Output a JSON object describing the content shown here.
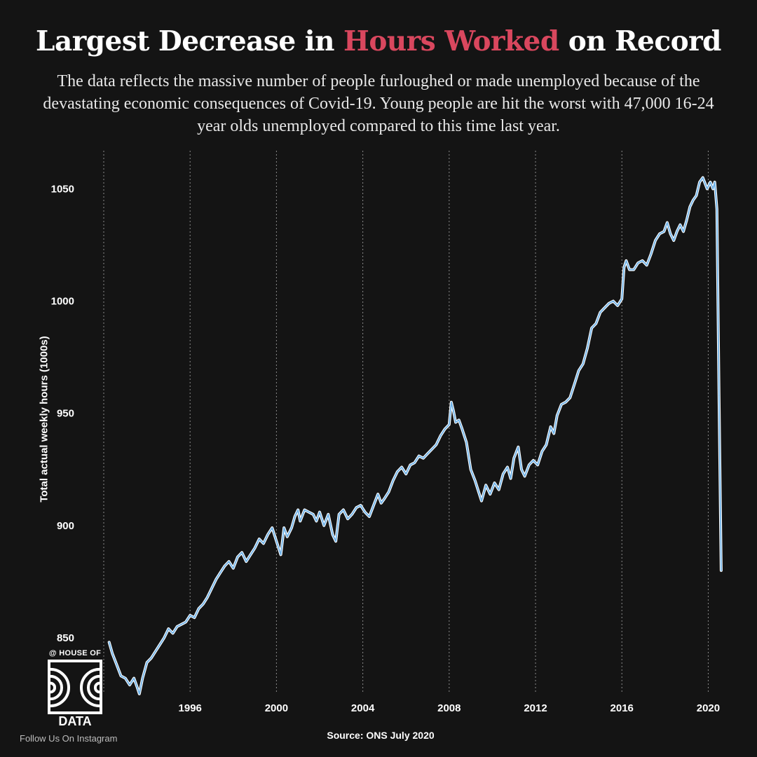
{
  "header": {
    "title_pre": "Largest Decrease in ",
    "title_highlight": "Hours Worked",
    "title_post": " on Record",
    "subtitle": "The data reflects the massive number of people furloughed or made unemployed because of the devastating economic consequences of Covid-19. Young people are hit the worst with 47,000 16-24 year olds unemployed compared to this time last year."
  },
  "colors": {
    "background": "#141414",
    "accent": "#d9475e",
    "line": "#6fb2e8",
    "line_halo": "#ffffff",
    "grid": "#8a8a8a",
    "text": "#ffffff"
  },
  "chart_data": {
    "type": "line",
    "title": "",
    "xlabel": "",
    "ylabel": "Total actual weekly hours (1000s)",
    "xlim": [
      1992,
      2020.7
    ],
    "ylim": [
      825,
      1067
    ],
    "grid": {
      "vertical": true,
      "horizontal": false,
      "style": "dotted"
    },
    "x_ticks": [
      1996,
      2000,
      2004,
      2008,
      2012,
      2016,
      2020
    ],
    "y_ticks": [
      850,
      900,
      950,
      1000,
      1050
    ],
    "series": [
      {
        "name": "",
        "points": [
          [
            1992.25,
            848
          ],
          [
            1992.4,
            843
          ],
          [
            1992.6,
            838
          ],
          [
            1992.8,
            833
          ],
          [
            1993.0,
            832
          ],
          [
            1993.2,
            829
          ],
          [
            1993.4,
            832
          ],
          [
            1993.55,
            828
          ],
          [
            1993.65,
            825
          ],
          [
            1993.8,
            832
          ],
          [
            1994.0,
            839
          ],
          [
            1994.2,
            841
          ],
          [
            1994.4,
            844
          ],
          [
            1994.6,
            847
          ],
          [
            1994.8,
            850
          ],
          [
            1995.0,
            854
          ],
          [
            1995.2,
            852
          ],
          [
            1995.4,
            855
          ],
          [
            1995.6,
            856
          ],
          [
            1995.8,
            857
          ],
          [
            1996.0,
            860
          ],
          [
            1996.2,
            859
          ],
          [
            1996.4,
            863
          ],
          [
            1996.6,
            865
          ],
          [
            1996.8,
            868
          ],
          [
            1997.0,
            872
          ],
          [
            1997.2,
            876
          ],
          [
            1997.4,
            879
          ],
          [
            1997.6,
            882
          ],
          [
            1997.8,
            884
          ],
          [
            1998.0,
            881
          ],
          [
            1998.2,
            886
          ],
          [
            1998.4,
            888
          ],
          [
            1998.6,
            884
          ],
          [
            1998.8,
            887
          ],
          [
            1999.0,
            890
          ],
          [
            1999.2,
            894
          ],
          [
            1999.4,
            892
          ],
          [
            1999.6,
            896
          ],
          [
            1999.8,
            899
          ],
          [
            2000.0,
            893
          ],
          [
            2000.2,
            887
          ],
          [
            2000.35,
            899
          ],
          [
            2000.5,
            895
          ],
          [
            2000.7,
            899
          ],
          [
            2000.85,
            904
          ],
          [
            2001.0,
            907
          ],
          [
            2001.1,
            902
          ],
          [
            2001.3,
            907
          ],
          [
            2001.5,
            906
          ],
          [
            2001.7,
            905
          ],
          [
            2001.85,
            902
          ],
          [
            2002.0,
            906
          ],
          [
            2002.2,
            900
          ],
          [
            2002.4,
            905
          ],
          [
            2002.6,
            896
          ],
          [
            2002.75,
            893
          ],
          [
            2002.9,
            905
          ],
          [
            2003.1,
            907
          ],
          [
            2003.3,
            903
          ],
          [
            2003.5,
            905
          ],
          [
            2003.7,
            908
          ],
          [
            2003.9,
            909
          ],
          [
            2004.1,
            906
          ],
          [
            2004.3,
            904
          ],
          [
            2004.5,
            909
          ],
          [
            2004.7,
            914
          ],
          [
            2004.85,
            910
          ],
          [
            2005.0,
            912
          ],
          [
            2005.2,
            915
          ],
          [
            2005.4,
            920
          ],
          [
            2005.6,
            924
          ],
          [
            2005.8,
            926
          ],
          [
            2006.0,
            923
          ],
          [
            2006.2,
            927
          ],
          [
            2006.4,
            928
          ],
          [
            2006.6,
            931
          ],
          [
            2006.8,
            930
          ],
          [
            2007.0,
            932
          ],
          [
            2007.2,
            934
          ],
          [
            2007.4,
            936
          ],
          [
            2007.6,
            940
          ],
          [
            2007.8,
            943
          ],
          [
            2008.0,
            945
          ],
          [
            2008.1,
            955
          ],
          [
            2008.2,
            951
          ],
          [
            2008.3,
            946
          ],
          [
            2008.45,
            947
          ],
          [
            2008.6,
            943
          ],
          [
            2008.8,
            937
          ],
          [
            2009.0,
            925
          ],
          [
            2009.2,
            920
          ],
          [
            2009.4,
            914
          ],
          [
            2009.5,
            911
          ],
          [
            2009.7,
            918
          ],
          [
            2009.9,
            914
          ],
          [
            2010.1,
            919
          ],
          [
            2010.3,
            916
          ],
          [
            2010.5,
            923
          ],
          [
            2010.7,
            926
          ],
          [
            2010.85,
            921
          ],
          [
            2011.0,
            930
          ],
          [
            2011.2,
            935
          ],
          [
            2011.35,
            925
          ],
          [
            2011.5,
            922
          ],
          [
            2011.7,
            927
          ],
          [
            2011.9,
            929
          ],
          [
            2012.1,
            927
          ],
          [
            2012.3,
            933
          ],
          [
            2012.5,
            936
          ],
          [
            2012.7,
            944
          ],
          [
            2012.85,
            941
          ],
          [
            2013.0,
            949
          ],
          [
            2013.2,
            954
          ],
          [
            2013.4,
            955
          ],
          [
            2013.6,
            957
          ],
          [
            2013.8,
            963
          ],
          [
            2014.0,
            969
          ],
          [
            2014.2,
            972
          ],
          [
            2014.4,
            979
          ],
          [
            2014.6,
            988
          ],
          [
            2014.8,
            990
          ],
          [
            2015.0,
            995
          ],
          [
            2015.2,
            997
          ],
          [
            2015.4,
            999
          ],
          [
            2015.6,
            1000
          ],
          [
            2015.8,
            998
          ],
          [
            2016.0,
            1001
          ],
          [
            2016.1,
            1015
          ],
          [
            2016.2,
            1018
          ],
          [
            2016.35,
            1014
          ],
          [
            2016.55,
            1014
          ],
          [
            2016.75,
            1017
          ],
          [
            2016.95,
            1018
          ],
          [
            2017.15,
            1016
          ],
          [
            2017.35,
            1021
          ],
          [
            2017.55,
            1027
          ],
          [
            2017.75,
            1030
          ],
          [
            2017.95,
            1031
          ],
          [
            2018.1,
            1035
          ],
          [
            2018.25,
            1030
          ],
          [
            2018.4,
            1027
          ],
          [
            2018.55,
            1031
          ],
          [
            2018.7,
            1034
          ],
          [
            2018.85,
            1031
          ],
          [
            2019.0,
            1036
          ],
          [
            2019.15,
            1042
          ],
          [
            2019.3,
            1045
          ],
          [
            2019.45,
            1047
          ],
          [
            2019.6,
            1053
          ],
          [
            2019.75,
            1055
          ],
          [
            2019.95,
            1050
          ],
          [
            2020.1,
            1053
          ],
          [
            2020.22,
            1050
          ],
          [
            2020.3,
            1053
          ],
          [
            2020.4,
            1041
          ],
          [
            2020.5,
            958
          ],
          [
            2020.6,
            880
          ]
        ]
      }
    ],
    "source": "Source: ONS July 2020"
  },
  "branding": {
    "top": "@ HOUSE OF",
    "bottom": "DATA",
    "follow": "Follow Us On Instagram"
  }
}
